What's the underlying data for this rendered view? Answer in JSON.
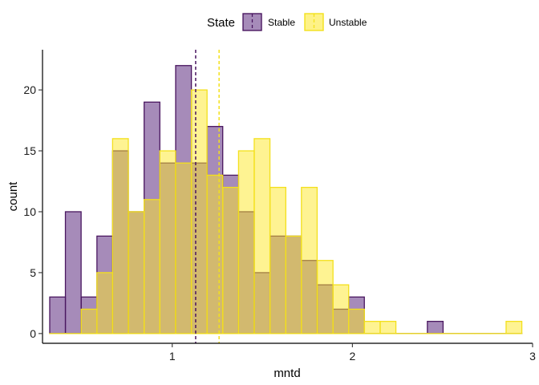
{
  "chart_data": {
    "type": "histogram",
    "xlabel": "mntd",
    "ylabel": "count",
    "xlim": [
      0.28,
      3.0
    ],
    "ylim": [
      -0.8,
      23.3
    ],
    "x_ticks": [
      1,
      2,
      3
    ],
    "y_ticks": [
      0,
      5,
      10,
      15,
      20
    ],
    "grid": false,
    "legend": {
      "title": "State",
      "position": "top"
    },
    "bin_width": 0.0873,
    "bin_starts": [
      0.32,
      0.407,
      0.495,
      0.582,
      0.669,
      0.757,
      0.844,
      0.931,
      1.019,
      1.106,
      1.193,
      1.281,
      1.368,
      1.455,
      1.543,
      1.63,
      1.717,
      1.805,
      1.892,
      1.979,
      2.067,
      2.154,
      2.241,
      2.329,
      2.416,
      2.503,
      2.591,
      2.678,
      2.765,
      2.853
    ],
    "series": [
      {
        "name": "Stable",
        "fill": "#6a3d8b",
        "stroke": "#4a1760",
        "mean": 1.13,
        "counts": [
          3,
          10,
          3,
          8,
          15,
          10,
          19,
          14,
          22,
          14,
          17,
          13,
          10,
          5,
          8,
          8,
          6,
          4,
          2,
          3,
          0,
          0,
          0,
          0,
          1,
          0,
          0,
          0,
          0,
          0
        ]
      },
      {
        "name": "Unstable",
        "fill": "#fde725",
        "stroke": "#f3e01c",
        "mean": 1.26,
        "counts": [
          0,
          0,
          2,
          5,
          16,
          10,
          11,
          15,
          14,
          20,
          13,
          12,
          15,
          16,
          12,
          8,
          12,
          6,
          4,
          2,
          1,
          1,
          0,
          0,
          0,
          0,
          0,
          0,
          0,
          1
        ]
      }
    ]
  }
}
